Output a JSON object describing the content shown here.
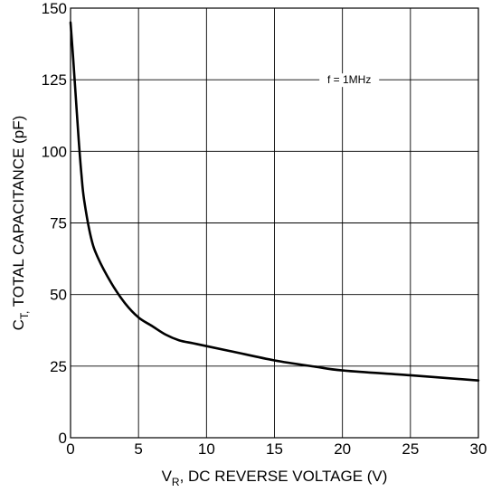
{
  "chart_data": {
    "type": "line",
    "xlabel_main": "V",
    "xlabel_sub": "R",
    "xlabel_rest": ", DC REVERSE VOLTAGE (V)",
    "ylabel_main": "C",
    "ylabel_sub": "T,",
    "ylabel_rest": "  TOTAL CAPACITANCE (pF)",
    "annotation": "f = 1MHz",
    "xlim": [
      0,
      30
    ],
    "ylim": [
      0,
      150
    ],
    "xticks": [
      0,
      5,
      10,
      15,
      20,
      25,
      30
    ],
    "yticks": [
      0,
      25,
      50,
      75,
      100,
      125,
      150
    ],
    "grid": true,
    "series": [
      {
        "x": [
          0,
          0.2,
          0.4,
          0.6,
          0.8,
          1.0,
          1.5,
          2,
          3,
          4,
          5,
          6,
          7,
          8,
          9,
          10,
          12,
          15,
          18,
          20,
          25,
          30
        ],
        "y": [
          145,
          132,
          118,
          104,
          92,
          83,
          70,
          63,
          54,
          47,
          42,
          39,
          36,
          34,
          33,
          32,
          30,
          27,
          24.8,
          23.5,
          21.8,
          20
        ]
      }
    ],
    "line_color": "#000000"
  }
}
